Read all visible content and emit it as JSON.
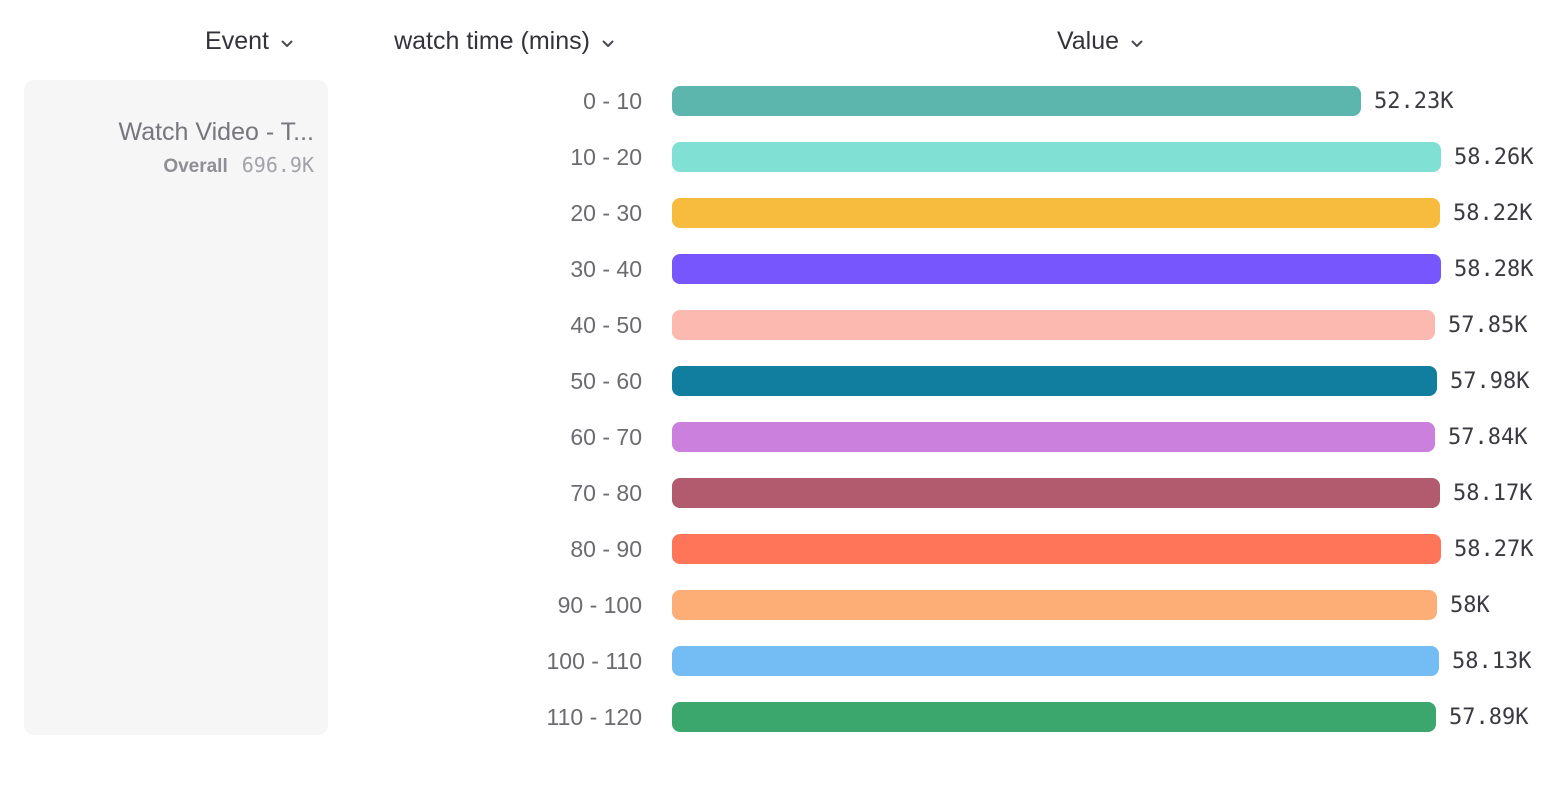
{
  "header": {
    "event_label": "Event",
    "breakdown_label": "watch time (mins)",
    "value_label": "Value"
  },
  "event_card": {
    "name": "Watch Video - T...",
    "overall_label": "Overall",
    "overall_value": "696.9K"
  },
  "chart_data": {
    "type": "bar",
    "orientation": "horizontal",
    "title": "",
    "xlabel": "Value",
    "ylabel": "watch time (mins)",
    "series_name": "Watch Video - T...",
    "overall_total": "696.9K",
    "categories": [
      "0 - 10",
      "10 - 20",
      "20 - 30",
      "30 - 40",
      "40 - 50",
      "50 - 60",
      "60 - 70",
      "70 - 80",
      "80 - 90",
      "90 - 100",
      "100 - 110",
      "110 - 120"
    ],
    "values": [
      52230,
      58260,
      58220,
      58280,
      57850,
      57980,
      57840,
      58170,
      58270,
      58000,
      58130,
      57890
    ],
    "value_labels": [
      "52.23K",
      "58.26K",
      "58.22K",
      "58.28K",
      "57.85K",
      "57.98K",
      "57.84K",
      "58.17K",
      "58.27K",
      "58K",
      "58.13K",
      "57.89K"
    ],
    "bar_colors": [
      "#5cb6ae",
      "#80e0d4",
      "#f7bb3e",
      "#7756fd",
      "#fcb9b0",
      "#117e9f",
      "#ca80dc",
      "#b25a6e",
      "#ff7559",
      "#fdae76",
      "#74bdf4",
      "#3ba76c"
    ],
    "chevron_color": "#4a4a52"
  }
}
